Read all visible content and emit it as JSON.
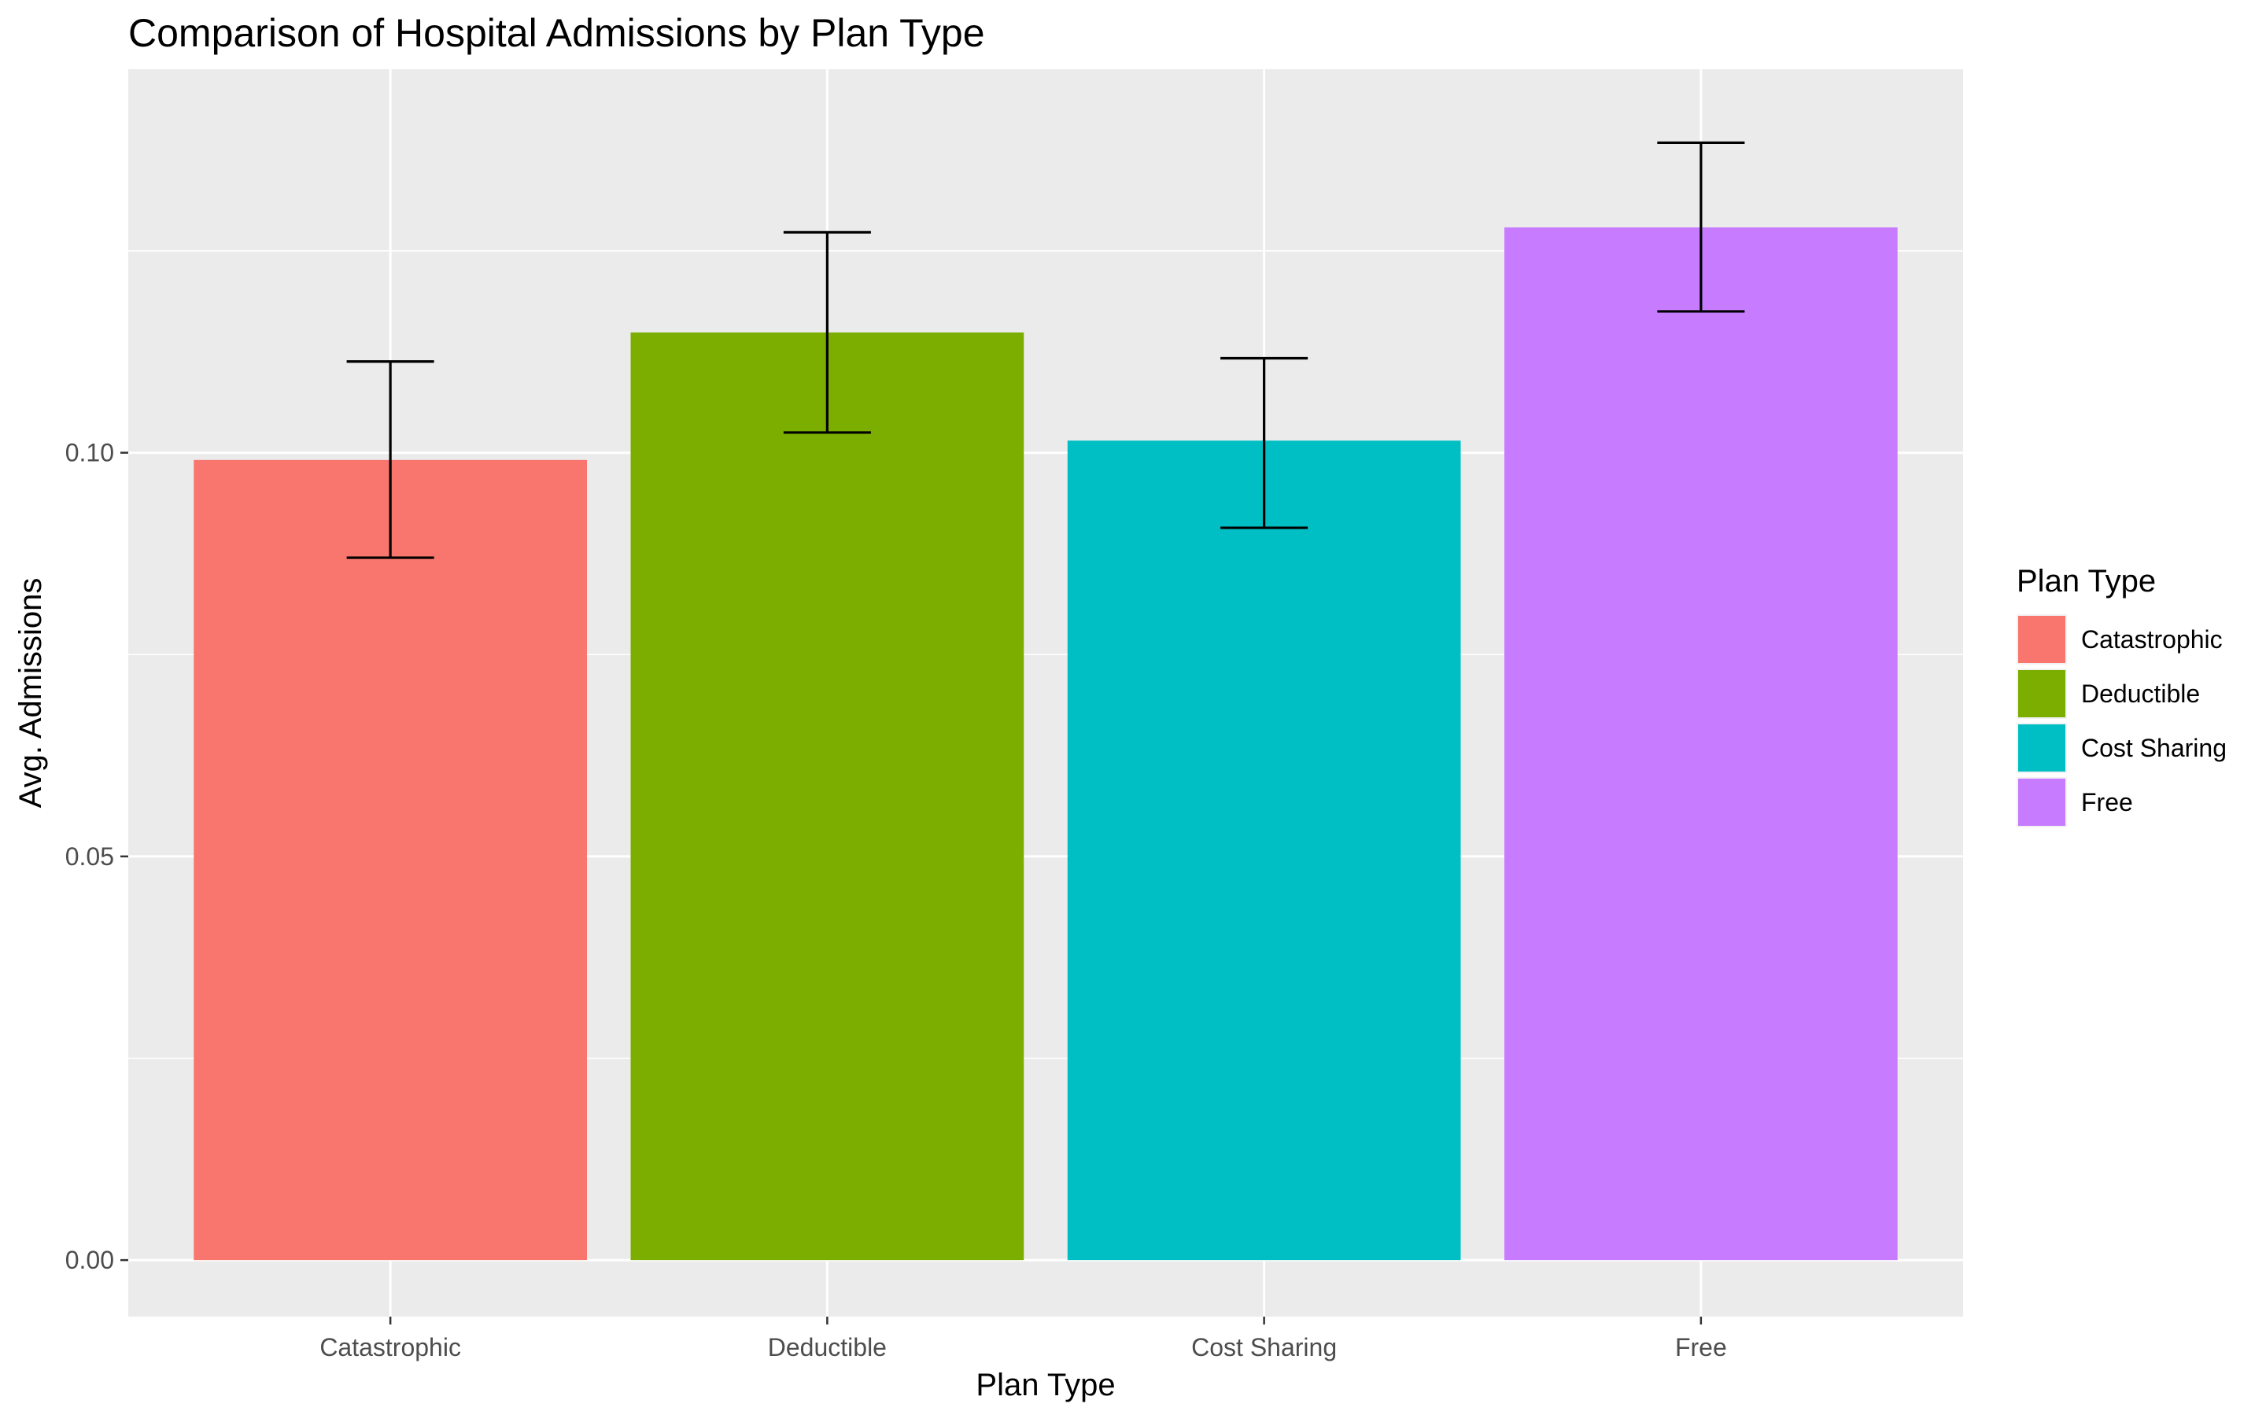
{
  "chart_data": {
    "type": "bar",
    "title": "Comparison of Hospital Admissions by Plan Type",
    "xlabel": "Plan Type",
    "ylabel": "Avg. Admissions",
    "categories": [
      "Catastrophic",
      "Deductible",
      "Cost Sharing",
      "Free"
    ],
    "values": [
      0.0991,
      0.1149,
      0.1015,
      0.1279
    ],
    "error_bars": [
      {
        "lower": 0.087,
        "upper": 0.1113
      },
      {
        "lower": 0.1025,
        "upper": 0.1273
      },
      {
        "lower": 0.0907,
        "upper": 0.1117
      },
      {
        "lower": 0.1175,
        "upper": 0.1384
      }
    ],
    "colors": [
      "#F8766D",
      "#7CAE00",
      "#00BFC4",
      "#C77CFF"
    ],
    "ylim": [
      -0.007,
      0.1475
    ],
    "yticks": [
      0.0,
      0.05,
      0.1
    ],
    "ytick_labels": [
      "0.00",
      "0.05",
      "0.10"
    ],
    "grid": true,
    "panel_background": "#EBEBEB",
    "legend": {
      "title": "Plan Type",
      "position": "right",
      "entries": [
        "Catastrophic",
        "Deductible",
        "Cost Sharing",
        "Free"
      ]
    }
  }
}
